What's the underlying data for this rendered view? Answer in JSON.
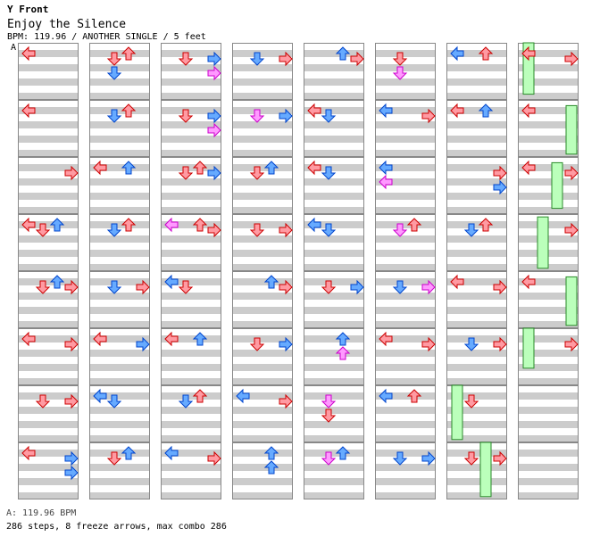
{
  "header": {
    "brand": "Y Front",
    "song_title": "Enjoy the Silence",
    "chart_info": "BPM: 119.96 / ANOTHER SINGLE / 5 feet",
    "bpm_marker": "A"
  },
  "footer": {
    "bpm_legend": "A: 119.96 BPM",
    "summary": "286 steps, 8 freeze arrows, max combo 286"
  },
  "colors": {
    "quarter_note": "#ff9aa2",
    "eighth_note": "#66aaff",
    "sixteenth_note": "#ff99ff",
    "freeze": "#bbffbb",
    "stripe": "#cccccc"
  },
  "chart": {
    "columns": 8,
    "measures_per_column": 8,
    "lanes": [
      "left",
      "down",
      "up",
      "right"
    ],
    "notes": [
      [
        [
          0,
          0,
          0,
          "r"
        ],
        [
          0,
          1,
          0,
          "r"
        ],
        [
          0,
          2,
          3,
          "r"
        ],
        [
          0,
          3,
          0,
          "r"
        ],
        [
          0,
          3,
          1,
          "r"
        ],
        [
          0,
          3,
          2,
          "b"
        ],
        [
          0,
          4,
          3,
          "r"
        ],
        [
          0,
          4,
          1,
          "r"
        ],
        [
          0,
          4,
          2,
          "b"
        ],
        [
          0,
          5,
          0,
          "r"
        ],
        [
          0,
          5,
          3,
          "r"
        ],
        [
          0,
          6,
          1,
          "r"
        ],
        [
          0,
          6,
          3,
          "r"
        ],
        [
          0,
          7,
          0,
          "r"
        ],
        [
          0,
          7,
          3,
          "b"
        ],
        [
          0,
          7,
          3,
          "b"
        ]
      ],
      [
        [
          1,
          0,
          1,
          "r"
        ],
        [
          1,
          0,
          2,
          "r"
        ],
        [
          1,
          0,
          1,
          "b"
        ],
        [
          1,
          1,
          2,
          "r"
        ],
        [
          1,
          1,
          1,
          "b"
        ],
        [
          1,
          2,
          0,
          "r"
        ],
        [
          1,
          2,
          2,
          "b"
        ],
        [
          1,
          3,
          1,
          "b"
        ],
        [
          1,
          3,
          2,
          "r"
        ],
        [
          1,
          4,
          1,
          "b"
        ],
        [
          1,
          4,
          3,
          "r"
        ],
        [
          1,
          5,
          0,
          "r"
        ],
        [
          1,
          5,
          3,
          "b"
        ],
        [
          1,
          6,
          1,
          "b"
        ],
        [
          1,
          6,
          0,
          "b"
        ],
        [
          1,
          7,
          2,
          "b"
        ],
        [
          1,
          7,
          1,
          "r"
        ]
      ],
      [
        [
          2,
          0,
          1,
          "r"
        ],
        [
          2,
          0,
          3,
          "b"
        ],
        [
          2,
          0,
          3,
          "p"
        ],
        [
          2,
          1,
          1,
          "r"
        ],
        [
          2,
          1,
          3,
          "b"
        ],
        [
          2,
          1,
          3,
          "p"
        ],
        [
          2,
          2,
          2,
          "r"
        ],
        [
          2,
          2,
          3,
          "b"
        ],
        [
          2,
          2,
          1,
          "r"
        ],
        [
          2,
          3,
          2,
          "r"
        ],
        [
          2,
          3,
          0,
          "p"
        ],
        [
          2,
          3,
          3,
          "r"
        ],
        [
          2,
          4,
          1,
          "r"
        ],
        [
          2,
          4,
          0,
          "b"
        ],
        [
          2,
          5,
          0,
          "r"
        ],
        [
          2,
          5,
          2,
          "b"
        ],
        [
          2,
          6,
          2,
          "r"
        ],
        [
          2,
          6,
          1,
          "b"
        ],
        [
          2,
          7,
          0,
          "b"
        ],
        [
          2,
          7,
          3,
          "r"
        ]
      ],
      [
        [
          3,
          0,
          3,
          "r"
        ],
        [
          3,
          0,
          1,
          "b"
        ],
        [
          3,
          1,
          3,
          "b"
        ],
        [
          3,
          1,
          1,
          "p"
        ],
        [
          3,
          2,
          1,
          "r"
        ],
        [
          3,
          2,
          2,
          "b"
        ],
        [
          3,
          3,
          3,
          "r"
        ],
        [
          3,
          3,
          1,
          "r"
        ],
        [
          3,
          4,
          3,
          "r"
        ],
        [
          3,
          4,
          2,
          "b"
        ],
        [
          3,
          5,
          3,
          "b"
        ],
        [
          3,
          5,
          1,
          "r"
        ],
        [
          3,
          6,
          0,
          "b"
        ],
        [
          3,
          6,
          3,
          "r"
        ],
        [
          3,
          7,
          2,
          "b"
        ],
        [
          3,
          7,
          2,
          "b"
        ]
      ],
      [
        [
          4,
          0,
          3,
          "r"
        ],
        [
          4,
          0,
          2,
          "b"
        ],
        [
          4,
          1,
          0,
          "r"
        ],
        [
          4,
          1,
          1,
          "b"
        ],
        [
          4,
          2,
          0,
          "r"
        ],
        [
          4,
          2,
          1,
          "b"
        ],
        [
          4,
          3,
          1,
          "b"
        ],
        [
          4,
          3,
          0,
          "b"
        ],
        [
          4,
          4,
          1,
          "r"
        ],
        [
          4,
          4,
          3,
          "b"
        ],
        [
          4,
          5,
          2,
          "b"
        ],
        [
          4,
          5,
          2,
          "p"
        ],
        [
          4,
          6,
          1,
          "p"
        ],
        [
          4,
          6,
          1,
          "r"
        ],
        [
          4,
          7,
          2,
          "b"
        ],
        [
          4,
          7,
          1,
          "p"
        ]
      ],
      [
        [
          5,
          0,
          1,
          "r"
        ],
        [
          5,
          0,
          1,
          "p"
        ],
        [
          5,
          1,
          3,
          "r"
        ],
        [
          5,
          1,
          0,
          "b"
        ],
        [
          5,
          2,
          0,
          "b"
        ],
        [
          5,
          2,
          0,
          "p"
        ],
        [
          5,
          3,
          2,
          "r"
        ],
        [
          5,
          3,
          1,
          "p"
        ],
        [
          5,
          4,
          1,
          "b"
        ],
        [
          5,
          4,
          3,
          "p"
        ],
        [
          5,
          5,
          0,
          "r"
        ],
        [
          5,
          5,
          3,
          "r"
        ],
        [
          5,
          6,
          2,
          "r"
        ],
        [
          5,
          6,
          0,
          "b"
        ],
        [
          5,
          7,
          3,
          "b"
        ],
        [
          5,
          7,
          1,
          "b"
        ]
      ],
      [
        [
          6,
          0,
          0,
          "b"
        ],
        [
          6,
          0,
          2,
          "r"
        ],
        [
          6,
          1,
          2,
          "b"
        ],
        [
          6,
          1,
          0,
          "r"
        ],
        [
          6,
          2,
          3,
          "r"
        ],
        [
          6,
          2,
          3,
          "b"
        ],
        [
          6,
          3,
          2,
          "r"
        ],
        [
          6,
          3,
          1,
          "b"
        ],
        [
          6,
          4,
          3,
          "r"
        ],
        [
          6,
          4,
          0,
          "r"
        ],
        [
          6,
          5,
          1,
          "b"
        ],
        [
          6,
          5,
          3,
          "r"
        ],
        [
          6,
          6,
          1,
          "r"
        ],
        [
          6,
          7,
          1,
          "r"
        ],
        [
          6,
          7,
          3,
          "r"
        ]
      ],
      [
        [
          7,
          0,
          0,
          "r"
        ],
        [
          7,
          0,
          3,
          "r"
        ],
        [
          7,
          1,
          0,
          "r"
        ],
        [
          7,
          2,
          0,
          "r"
        ],
        [
          7,
          2,
          3,
          "r"
        ],
        [
          7,
          3,
          3,
          "r"
        ],
        [
          7,
          4,
          0,
          "r"
        ],
        [
          7,
          5,
          3,
          "r"
        ]
      ]
    ],
    "freezes": [
      [
        7,
        0,
        0,
        0.0,
        0.9
      ],
      [
        7,
        1,
        3,
        0.1,
        0.95
      ],
      [
        7,
        2,
        2,
        0.1,
        0.9
      ],
      [
        7,
        3,
        1,
        0.05,
        0.95
      ],
      [
        7,
        4,
        3,
        0.1,
        0.95
      ],
      [
        7,
        5,
        0,
        0.0,
        0.7
      ],
      [
        6,
        6,
        0,
        0.0,
        0.95
      ],
      [
        6,
        7,
        2,
        0.0,
        0.95
      ]
    ]
  }
}
